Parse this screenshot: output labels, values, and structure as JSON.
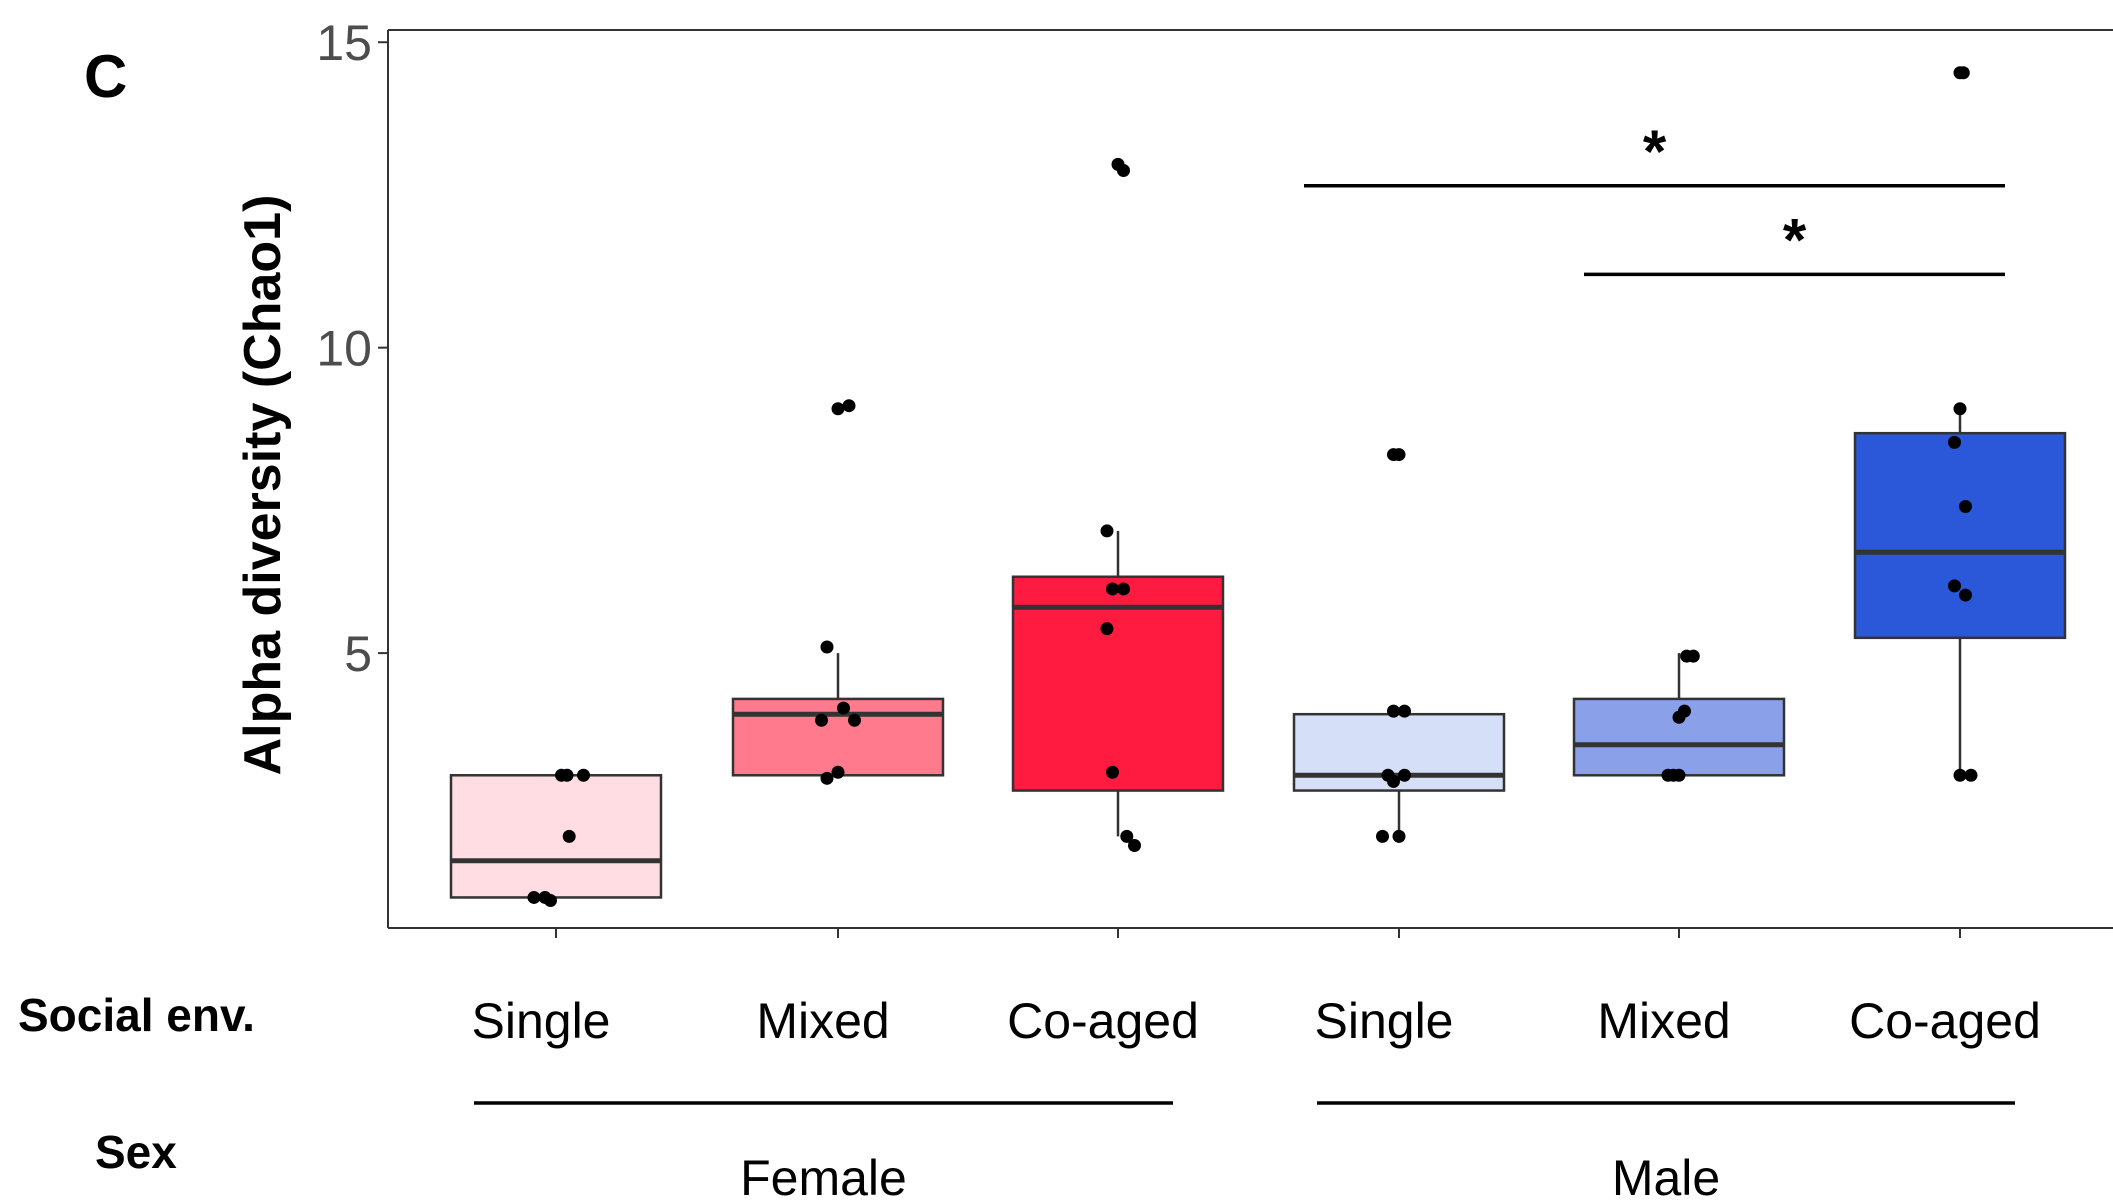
{
  "chart_data": {
    "type": "box",
    "panel_label": "C",
    "ylabel": "Alpha diversity (Chao1)",
    "ylim": [
      0.5,
      15.2
    ],
    "yticks": [
      5,
      10,
      15
    ],
    "row_labels": {
      "social": "Social env.",
      "sex": "Sex"
    },
    "groups": [
      {
        "category": "Single",
        "sex": "Female",
        "color": "#ffdde3",
        "q1": 1,
        "median": 1.6,
        "q3": 3,
        "whisker_low": 1,
        "whisker_high": 3,
        "points": [
          [
            -0.2,
            1
          ],
          [
            -0.1,
            1
          ],
          [
            0.1,
            3
          ],
          [
            0.25,
            3
          ],
          [
            0.12,
            2
          ],
          [
            -0.05,
            0.95
          ],
          [
            0.05,
            3
          ]
        ]
      },
      {
        "category": "Mixed",
        "sex": "Female",
        "color": "#ff7a8c",
        "q1": 3,
        "median": 4,
        "q3": 4.25,
        "whisker_low": 3,
        "whisker_high": 5,
        "points": [
          [
            -0.1,
            5.1
          ],
          [
            -0.15,
            3.9
          ],
          [
            0.05,
            4.1
          ],
          [
            0.15,
            3.9
          ],
          [
            -0.1,
            2.95
          ],
          [
            0,
            3.05
          ],
          [
            0.0,
            9
          ],
          [
            0.1,
            9.05
          ]
        ]
      },
      {
        "category": "Co-aged",
        "sex": "Female",
        "color": "#ff1a40",
        "q1": 2.75,
        "median": 5.75,
        "q3": 6.25,
        "whisker_low": 2,
        "whisker_high": 7,
        "points": [
          [
            -0.1,
            7
          ],
          [
            -0.05,
            6.05
          ],
          [
            0.05,
            6.05
          ],
          [
            -0.1,
            5.4
          ],
          [
            -0.05,
            3.05
          ],
          [
            0.08,
            2
          ],
          [
            0.15,
            1.85
          ],
          [
            0,
            13
          ],
          [
            0.05,
            12.9
          ]
        ]
      },
      {
        "category": "Single",
        "sex": "Male",
        "color": "#d6dff8",
        "q1": 2.75,
        "median": 3,
        "q3": 4,
        "whisker_low": 2,
        "whisker_high": 4,
        "points": [
          [
            -0.05,
            4.05
          ],
          [
            0.05,
            4.05
          ],
          [
            -0.1,
            3
          ],
          [
            0.05,
            3
          ],
          [
            -0.05,
            2.9
          ],
          [
            0,
            2
          ],
          [
            -0.15,
            2
          ],
          [
            -0.05,
            8.25
          ],
          [
            0.0,
            8.25
          ]
        ]
      },
      {
        "category": "Mixed",
        "sex": "Male",
        "color": "#8aa0e9",
        "q1": 3,
        "median": 3.5,
        "q3": 4.25,
        "whisker_low": 3,
        "whisker_high": 5,
        "points": [
          [
            0.07,
            4.95
          ],
          [
            0.13,
            4.95
          ],
          [
            0.0,
            3.95
          ],
          [
            0.05,
            4.05
          ],
          [
            -0.05,
            3
          ],
          [
            0.0,
            3
          ],
          [
            -0.1,
            3
          ]
        ]
      },
      {
        "category": "Co-aged",
        "sex": "Male",
        "color": "#2b58d8",
        "q1": 5.25,
        "median": 6.65,
        "q3": 8.6,
        "whisker_low": 3,
        "whisker_high": 9,
        "points": [
          [
            0,
            9
          ],
          [
            -0.05,
            8.45
          ],
          [
            0.05,
            7.4
          ],
          [
            -0.05,
            6.1
          ],
          [
            0.05,
            5.95
          ],
          [
            0,
            3
          ],
          [
            0.1,
            3
          ],
          [
            0,
            14.5
          ],
          [
            0.03,
            14.5
          ]
        ]
      }
    ],
    "sex_groups": [
      {
        "name": "Female",
        "from": 0,
        "to": 2
      },
      {
        "name": "Male",
        "from": 3,
        "to": 5
      }
    ],
    "significance": [
      {
        "from": 3,
        "to": 5,
        "label": "*"
      },
      {
        "from": 4,
        "to": 5,
        "label": "*"
      }
    ]
  }
}
